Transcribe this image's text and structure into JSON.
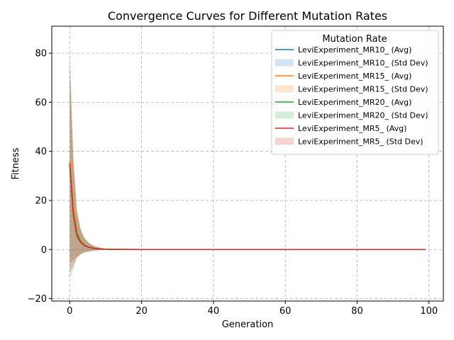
{
  "chart_data": {
    "type": "line",
    "title": "Convergence Curves for Different Mutation Rates",
    "xlabel": "Generation",
    "ylabel": "Fitness",
    "xlim": [
      -5,
      104
    ],
    "ylim": [
      -21,
      91
    ],
    "xticks": [
      0,
      20,
      40,
      60,
      80,
      100
    ],
    "yticks": [
      -20,
      0,
      20,
      40,
      60,
      80
    ],
    "grid": true,
    "legend": {
      "title": "Mutation Rate",
      "placement": "top-right",
      "entries": [
        "LeviExperiment_MR10_ (Avg)",
        "LeviExperiment_MR10_ (Std Dev)",
        "LeviExperiment_MR15_ (Avg)",
        "LeviExperiment_MR15_ (Std Dev)",
        "LeviExperiment_MR20_ (Avg)",
        "LeviExperiment_MR20_ (Std Dev)",
        "LeviExperiment_MR5_ (Avg)",
        "LeviExperiment_MR5_ (Std Dev)"
      ]
    },
    "x": [
      0,
      1,
      2,
      3,
      4,
      5,
      6,
      7,
      8,
      9,
      10,
      12,
      15,
      20,
      30,
      40,
      50,
      60,
      70,
      80,
      90,
      99
    ],
    "series": [
      {
        "name": "LeviExperiment_MR10_",
        "color": "#1f77b4",
        "avg": [
          35,
          16,
          6,
          3.2,
          1.8,
          1.1,
          0.7,
          0.45,
          0.3,
          0.2,
          0.12,
          0.06,
          0.03,
          0.01,
          0,
          0,
          0,
          0,
          0,
          0,
          0,
          0
        ],
        "std": [
          40,
          20,
          9,
          5,
          3,
          2,
          1.3,
          0.9,
          0.6,
          0.4,
          0.25,
          0.12,
          0.06,
          0.02,
          0,
          0,
          0,
          0,
          0,
          0,
          0,
          0
        ]
      },
      {
        "name": "LeviExperiment_MR15_",
        "color": "#ff7f0e",
        "avg": [
          36,
          17,
          7,
          3.5,
          2,
          1.2,
          0.8,
          0.5,
          0.32,
          0.2,
          0.13,
          0.06,
          0.03,
          0.01,
          0,
          0,
          0,
          0,
          0,
          0,
          0,
          0
        ],
        "std": [
          42,
          22,
          10,
          5.5,
          3.2,
          2.1,
          1.4,
          0.9,
          0.6,
          0.4,
          0.25,
          0.12,
          0.06,
          0.02,
          0,
          0,
          0,
          0,
          0,
          0,
          0,
          0
        ]
      },
      {
        "name": "LeviExperiment_MR20_",
        "color": "#2ca02c",
        "avg": [
          34,
          15,
          6.5,
          3.3,
          1.9,
          1.1,
          0.7,
          0.45,
          0.3,
          0.2,
          0.12,
          0.06,
          0.03,
          0.01,
          0,
          0,
          0,
          0,
          0,
          0,
          0,
          0
        ],
        "std": [
          46,
          23,
          10,
          5.2,
          3,
          2,
          1.3,
          0.9,
          0.6,
          0.4,
          0.25,
          0.12,
          0.06,
          0.02,
          0,
          0,
          0,
          0,
          0,
          0,
          0,
          0
        ]
      },
      {
        "name": "LeviExperiment_MR5_",
        "color": "#d62728",
        "avg": [
          35,
          14,
          5.5,
          3,
          1.7,
          1,
          0.65,
          0.42,
          0.28,
          0.18,
          0.11,
          0.05,
          0.03,
          0.01,
          0,
          0,
          0,
          0,
          0,
          0,
          0,
          0
        ],
        "std": [
          44,
          21,
          9,
          5,
          3,
          2,
          1.3,
          0.9,
          0.6,
          0.4,
          0.25,
          0.12,
          0.06,
          0.02,
          0,
          0,
          0,
          0,
          0,
          0,
          0,
          0
        ]
      }
    ]
  }
}
